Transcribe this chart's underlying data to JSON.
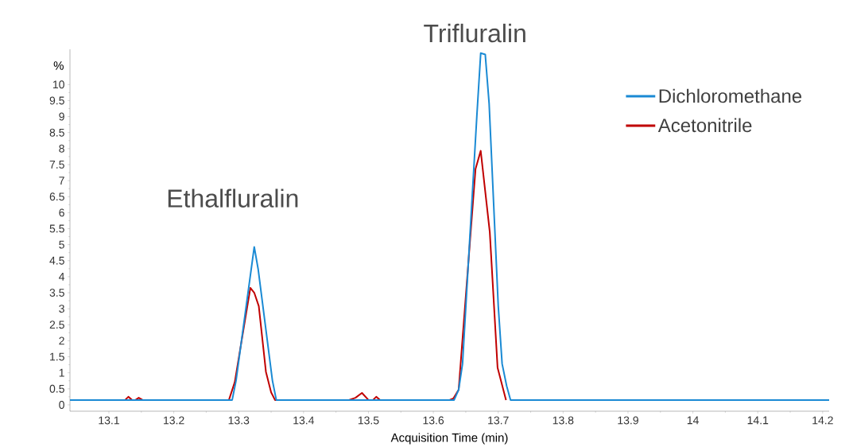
{
  "chart_data": {
    "type": "line",
    "xlabel": "Acquisition Time (min)",
    "ylabel": "%",
    "xlim": [
      13.04,
      14.21
    ],
    "ylim": [
      -0.2,
      11.1
    ],
    "xticks": [
      13.1,
      13.2,
      13.3,
      13.4,
      13.5,
      13.6,
      13.7,
      13.8,
      13.9,
      14,
      14.1,
      14.2
    ],
    "yticks": [
      0,
      0.5,
      1,
      1.5,
      2,
      2.5,
      3,
      3.5,
      4,
      4.5,
      5,
      5.5,
      6,
      6.5,
      7,
      7.5,
      8,
      8.5,
      9,
      9.5,
      10
    ],
    "grid": false,
    "legend": "top right",
    "marker": "none",
    "line_style": "solid",
    "annotations": [
      {
        "text": "Ethalfluralin",
        "x": 13.324,
        "y": 4.93
      },
      {
        "text": "Trifluralin",
        "x": 13.673,
        "y": 10.98
      }
    ],
    "series": [
      {
        "name": "Dichloromethane",
        "color": "#1a8ad4",
        "x": [
          13.04,
          13.29,
          13.296,
          13.324,
          13.33,
          13.352,
          13.358,
          13.632,
          13.639,
          13.645,
          13.667,
          13.673,
          13.68,
          13.686,
          13.7,
          13.706,
          13.713,
          13.719,
          14.21
        ],
        "values": [
          0.15,
          0.15,
          0.76,
          4.93,
          4.24,
          0.76,
          0.15,
          0.15,
          0.47,
          1.28,
          9.0,
          10.98,
          10.94,
          9.4,
          3.1,
          1.28,
          0.59,
          0.15,
          0.15
        ]
      },
      {
        "name": "Acetonitrile",
        "color": "#c00000",
        "x": [
          13.125,
          13.13,
          13.136,
          13.141,
          13.146,
          13.152,
          13.285,
          13.294,
          13.318,
          13.324,
          13.331,
          13.342,
          13.35,
          13.356,
          13.47,
          13.48,
          13.49,
          13.5,
          13.507,
          13.512,
          13.518,
          13.625,
          13.631,
          13.639,
          13.665,
          13.673,
          13.687,
          13.699,
          13.712
        ],
        "values": [
          0.15,
          0.25,
          0.15,
          0.15,
          0.22,
          0.15,
          0.15,
          0.71,
          3.65,
          3.5,
          3.08,
          1.03,
          0.39,
          0.15,
          0.15,
          0.22,
          0.37,
          0.15,
          0.15,
          0.25,
          0.15,
          0.15,
          0.2,
          0.47,
          7.36,
          7.93,
          5.39,
          1.16,
          0.15
        ]
      }
    ]
  }
}
